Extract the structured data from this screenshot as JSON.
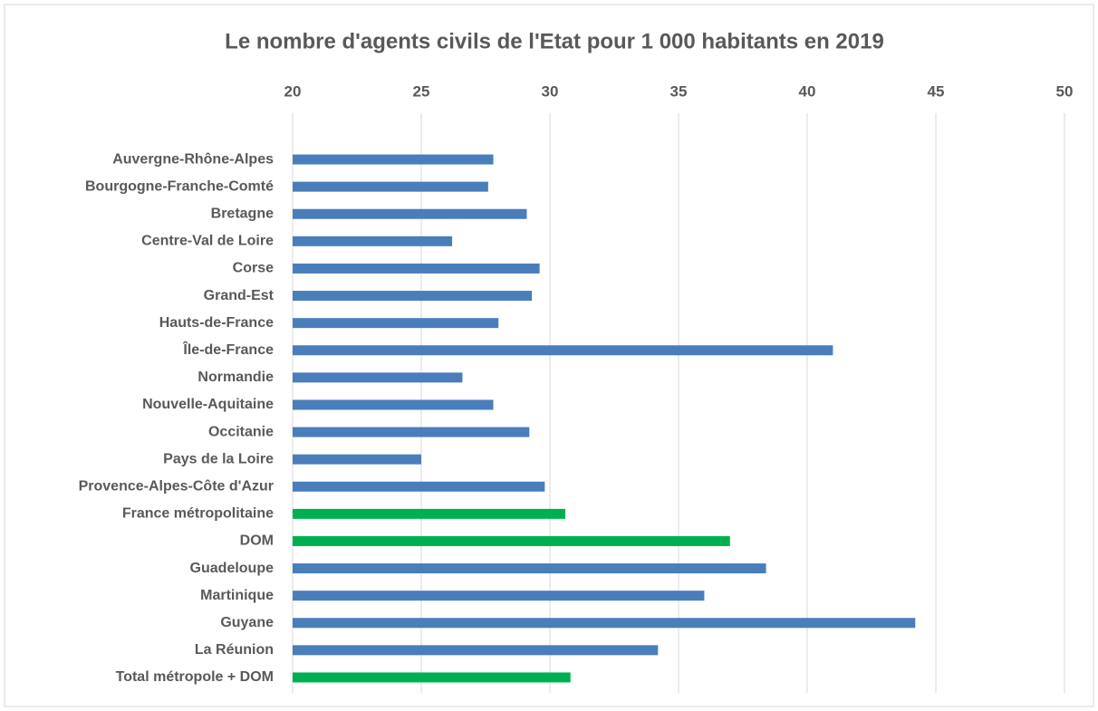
{
  "chart_data": {
    "type": "barh",
    "title": "Le nombre d'agents civils de l'Etat pour 1 000 habitants en 2019",
    "categories": [
      "Auvergne-Rhône-Alpes",
      "Bourgogne-Franche-Comté",
      "Bretagne",
      "Centre-Val de Loire",
      "Corse",
      "Grand-Est",
      "Hauts-de-France",
      "Île-de-France",
      "Normandie",
      "Nouvelle-Aquitaine",
      "Occitanie",
      "Pays de la Loire",
      "Provence-Alpes-Côte d'Azur",
      "France métropolitaine",
      "DOM",
      "Guadeloupe",
      "Martinique",
      "Guyane",
      "La Réunion",
      "Total métropole + DOM"
    ],
    "values": [
      27.8,
      27.6,
      29.1,
      26.2,
      29.6,
      29.3,
      28.0,
      41.0,
      26.6,
      27.8,
      29.2,
      25.0,
      29.8,
      30.6,
      37.0,
      38.4,
      36.0,
      44.2,
      34.2,
      30.8
    ],
    "colors": [
      "#4a7ebb",
      "#4a7ebb",
      "#4a7ebb",
      "#4a7ebb",
      "#4a7ebb",
      "#4a7ebb",
      "#4a7ebb",
      "#4a7ebb",
      "#4a7ebb",
      "#4a7ebb",
      "#4a7ebb",
      "#4a7ebb",
      "#4a7ebb",
      "#00b050",
      "#00b050",
      "#4a7ebb",
      "#4a7ebb",
      "#4a7ebb",
      "#4a7ebb",
      "#00b050"
    ],
    "xlim": [
      20,
      50
    ],
    "xticks": [
      20,
      25,
      30,
      35,
      40,
      45,
      50
    ],
    "grid": true
  }
}
